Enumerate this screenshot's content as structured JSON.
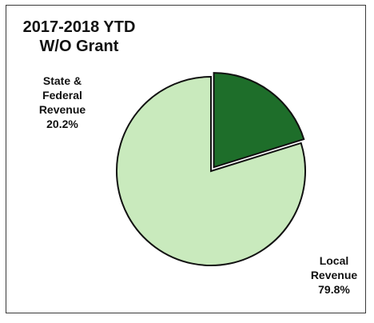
{
  "chart_data": {
    "type": "pie",
    "title_lines": [
      "2017-2018 YTD",
      "W/O Grant"
    ],
    "slices": [
      {
        "label_lines": [
          "State &",
          "Federal",
          "Revenue",
          "20.2%"
        ],
        "value": 20.2,
        "color": "#1e6e2a",
        "exploded": true
      },
      {
        "label_lines": [
          "Local",
          "Revenue",
          "79.8%"
        ],
        "value": 79.8,
        "color": "#c9eabd",
        "exploded": false
      }
    ],
    "legend": "none",
    "outline_color": "#111111"
  }
}
